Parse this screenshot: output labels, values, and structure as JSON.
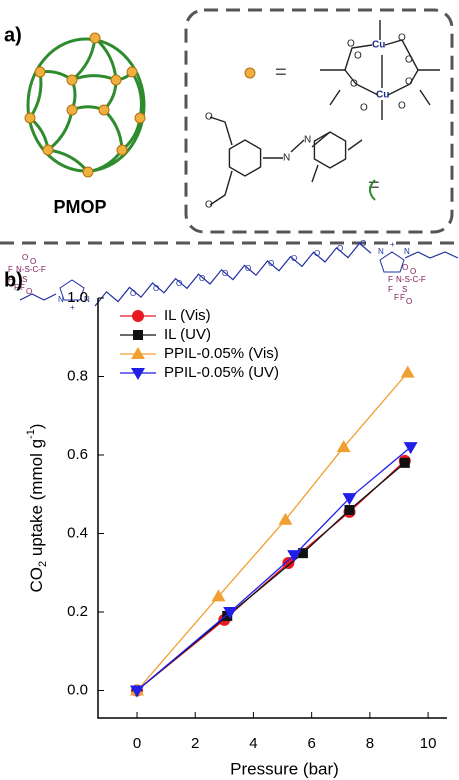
{
  "panel_a": {
    "label": "a)",
    "cage_caption": "PMOP",
    "equals": [
      "=",
      "="
    ],
    "cu_atoms": [
      "Cu",
      "Cu"
    ],
    "cu_oxygens": [
      "O",
      "O",
      "O",
      "O",
      "O",
      "O",
      "O",
      "O"
    ],
    "azo_atoms": [
      "N",
      "N"
    ],
    "linker_oxygens": [
      "O",
      "O"
    ]
  },
  "ionic_liquid": {
    "ether_oxygens": [
      "O",
      "O",
      "O",
      "O",
      "O",
      "O",
      "O",
      "O",
      "O",
      "O",
      "O"
    ],
    "cation_atoms": [
      "N",
      "N",
      "N",
      "N"
    ],
    "charges": [
      "+",
      "+"
    ],
    "anion_left": [
      "O",
      "F",
      "N-S-C-F",
      "O",
      "F",
      "S",
      "F",
      "F",
      "O"
    ],
    "anion_right": [
      "O",
      "F",
      "N-S-C-F",
      "O",
      "F",
      "S",
      "F",
      "F",
      "O"
    ]
  },
  "chart_data": {
    "type": "scatter-line",
    "panel_label": "b)",
    "x_label": "Pressure (bar)",
    "y_label": {
      "parts": [
        "CO",
        "2",
        " uptake (mmol g",
        "-1",
        ")"
      ]
    },
    "xlim": [
      -1.34,
      10.65
    ],
    "ylim": [
      -0.07,
      1.0
    ],
    "xticks": [
      0,
      2,
      4,
      6,
      8,
      10
    ],
    "yticks": [
      {
        "value": 0,
        "label": "0.0"
      },
      {
        "value": 0.2,
        "label": "0.2"
      },
      {
        "value": 0.4,
        "label": "0.4"
      },
      {
        "value": 0.6,
        "label": "0.6"
      },
      {
        "value": 0.8,
        "label": "0.8"
      },
      {
        "value": 1.0,
        "label": "1.0"
      }
    ],
    "legend": "upper left",
    "series": [
      {
        "name": "IL (Vis)",
        "color": "#e8191f",
        "marker": "circle",
        "x": [
          0,
          3,
          5.2,
          7.3,
          9.2
        ],
        "values": [
          0,
          0.18,
          0.325,
          0.455,
          0.585
        ]
      },
      {
        "name": "IL (UV)",
        "color": "#111111",
        "marker": "square",
        "x": [
          0,
          3.1,
          5.7,
          7.3,
          9.2
        ],
        "values": [
          0,
          0.19,
          0.35,
          0.46,
          0.58
        ]
      },
      {
        "name": "PPIL-0.05% (Vis)",
        "color": "#f0a030",
        "marker": "triangle",
        "x": [
          0,
          2.8,
          5.1,
          7.1,
          9.3
        ],
        "values": [
          0,
          0.24,
          0.435,
          0.62,
          0.81
        ]
      },
      {
        "name": "PPIL-0.05% (UV)",
        "color": "#1f1fe8",
        "marker": "triangle-down",
        "x": [
          0,
          3.2,
          5.4,
          7.3,
          9.4
        ],
        "values": [
          0,
          0.2,
          0.345,
          0.49,
          0.62
        ]
      }
    ]
  }
}
